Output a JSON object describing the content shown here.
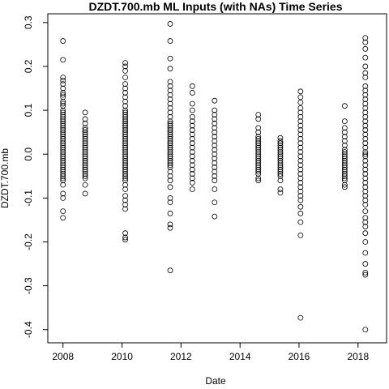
{
  "chart_data": {
    "type": "scatter",
    "title": "DZDT.700.mb ML Inputs (with NAs) Time Series",
    "xlabel": "Date",
    "ylabel": "DZDT.700.mb",
    "xlim": [
      "2007-06-27",
      "2018-12-20"
    ],
    "ylim": [
      -0.43,
      0.32
    ],
    "x_ticks": [
      "2008",
      "2010",
      "2012",
      "2014",
      "2016",
      "2018"
    ],
    "x_tick_dates": [
      "2008-01-01",
      "2010-01-01",
      "2012-01-01",
      "2014-01-01",
      "2016-01-01",
      "2018-01-01"
    ],
    "y_ticks": [
      -0.4,
      -0.3,
      -0.2,
      -0.1,
      0.0,
      0.1,
      0.2,
      0.3
    ],
    "y_tick_labels": [
      "-0.4",
      "-0.3",
      "-0.2",
      "-0.1",
      "0.0",
      "0.1",
      "0.2",
      "0.3"
    ],
    "grid": false,
    "marker": "open-circle",
    "series": [
      {
        "clusters": [
          {
            "date": "2008-01-01",
            "values": [
              0.258,
              0.215,
              0.175,
              0.168,
              0.16,
              0.15,
              0.14,
              0.135,
              0.13,
              0.12,
              0.115,
              0.11,
              0.1,
              0.095,
              0.09,
              0.085,
              0.08,
              0.075,
              0.07,
              0.065,
              0.06,
              0.055,
              0.05,
              0.045,
              0.04,
              0.035,
              0.03,
              0.025,
              0.02,
              0.015,
              0.01,
              0.005,
              0.0,
              -0.005,
              -0.01,
              -0.015,
              -0.02,
              -0.025,
              -0.03,
              -0.035,
              -0.04,
              -0.045,
              -0.05,
              -0.055,
              -0.06,
              -0.07,
              -0.09,
              -0.1,
              -0.13,
              -0.145
            ]
          },
          {
            "date": "2008-10-01",
            "values": [
              0.095,
              0.08,
              0.07,
              0.06,
              0.055,
              0.05,
              0.045,
              0.04,
              0.035,
              0.03,
              0.025,
              0.02,
              0.015,
              0.01,
              0.005,
              0.0,
              -0.005,
              -0.01,
              -0.015,
              -0.02,
              -0.025,
              -0.03,
              -0.035,
              -0.04,
              -0.045,
              -0.05,
              -0.055,
              -0.07,
              -0.09
            ]
          },
          {
            "date": "2010-02-10",
            "values": [
              0.208,
              0.2,
              0.19,
              0.175,
              0.16,
              0.15,
              0.14,
              0.13,
              0.12,
              0.11,
              0.1,
              0.095,
              0.09,
              0.085,
              0.08,
              0.075,
              0.07,
              0.065,
              0.06,
              0.055,
              0.05,
              0.045,
              0.04,
              0.035,
              0.03,
              0.025,
              0.02,
              0.015,
              0.01,
              0.005,
              0.0,
              -0.005,
              -0.01,
              -0.015,
              -0.02,
              -0.025,
              -0.03,
              -0.035,
              -0.04,
              -0.045,
              -0.05,
              -0.055,
              -0.06,
              -0.07,
              -0.08,
              -0.095,
              -0.105,
              -0.115,
              -0.125,
              -0.18,
              -0.19,
              -0.195
            ]
          },
          {
            "date": "2011-08-20",
            "values": [
              0.297,
              0.258,
              0.218,
              0.195,
              0.165,
              0.155,
              0.145,
              0.135,
              0.125,
              0.115,
              0.105,
              0.095,
              0.085,
              0.075,
              0.07,
              0.065,
              0.06,
              0.055,
              0.05,
              0.045,
              0.04,
              0.035,
              0.03,
              0.025,
              0.02,
              0.015,
              0.01,
              0.005,
              0.0,
              -0.005,
              -0.01,
              -0.015,
              -0.02,
              -0.025,
              -0.03,
              -0.04,
              -0.05,
              -0.06,
              -0.075,
              -0.1,
              -0.11,
              -0.135,
              -0.16,
              -0.168,
              -0.265
            ]
          },
          {
            "date": "2012-05-20",
            "values": [
              0.155,
              0.14,
              0.115,
              0.1,
              0.085,
              0.075,
              0.065,
              0.055,
              0.045,
              0.035,
              0.025,
              0.015,
              0.005,
              -0.005,
              -0.015,
              -0.025,
              -0.035,
              -0.045,
              -0.055,
              -0.065,
              -0.08
            ]
          },
          {
            "date": "2013-02-20",
            "values": [
              0.122,
              0.1,
              0.09,
              0.08,
              0.07,
              0.06,
              0.05,
              0.04,
              0.03,
              0.02,
              0.01,
              0.0,
              -0.01,
              -0.02,
              -0.03,
              -0.04,
              -0.05,
              -0.06,
              -0.08,
              -0.11,
              -0.142
            ]
          },
          {
            "date": "2014-08-15",
            "values": [
              0.09,
              0.08,
              0.06,
              0.05,
              0.04,
              0.035,
              0.03,
              0.025,
              0.02,
              0.015,
              0.01,
              0.005,
              0.0,
              -0.005,
              -0.01,
              -0.015,
              -0.02,
              -0.025,
              -0.03,
              -0.035,
              -0.04,
              -0.045,
              -0.055,
              -0.06
            ]
          },
          {
            "date": "2015-05-15",
            "values": [
              0.037,
              0.03,
              0.025,
              0.02,
              0.015,
              0.01,
              0.005,
              0.0,
              -0.005,
              -0.01,
              -0.015,
              -0.02,
              -0.025,
              -0.03,
              -0.035,
              -0.04,
              -0.045,
              -0.05,
              -0.06,
              -0.08,
              -0.088
            ]
          },
          {
            "date": "2016-01-20",
            "values": [
              0.143,
              0.13,
              0.118,
              0.105,
              0.095,
              0.085,
              0.075,
              0.065,
              0.055,
              0.045,
              0.035,
              0.025,
              0.015,
              0.005,
              -0.005,
              -0.015,
              -0.025,
              -0.035,
              -0.045,
              -0.055,
              -0.065,
              -0.075,
              -0.085,
              -0.095,
              -0.105,
              -0.12,
              -0.135,
              -0.155,
              -0.185,
              -0.373
            ]
          },
          {
            "date": "2017-07-20",
            "values": [
              0.11,
              0.075,
              0.06,
              0.05,
              0.04,
              0.03,
              0.02,
              0.01,
              0.005,
              0.0,
              -0.005,
              -0.01,
              -0.015,
              -0.02,
              -0.025,
              -0.03,
              -0.035,
              -0.04,
              -0.045,
              -0.05,
              -0.055,
              -0.06,
              -0.07,
              -0.075
            ]
          },
          {
            "date": "2018-04-01",
            "values": [
              0.265,
              0.255,
              0.24,
              0.22,
              0.2,
              0.185,
              0.175,
              0.155,
              0.145,
              0.135,
              0.125,
              0.115,
              0.105,
              0.095,
              0.085,
              0.075,
              0.065,
              0.055,
              0.045,
              0.035,
              0.025,
              0.015,
              0.005,
              0.0,
              -0.005,
              -0.015,
              -0.025,
              -0.035,
              -0.045,
              -0.055,
              -0.065,
              -0.075,
              -0.085,
              -0.095,
              -0.105,
              -0.115,
              -0.13,
              -0.145,
              -0.155,
              -0.165,
              -0.18,
              -0.2,
              -0.225,
              -0.25,
              -0.27,
              -0.275,
              -0.4
            ]
          }
        ]
      }
    ]
  }
}
